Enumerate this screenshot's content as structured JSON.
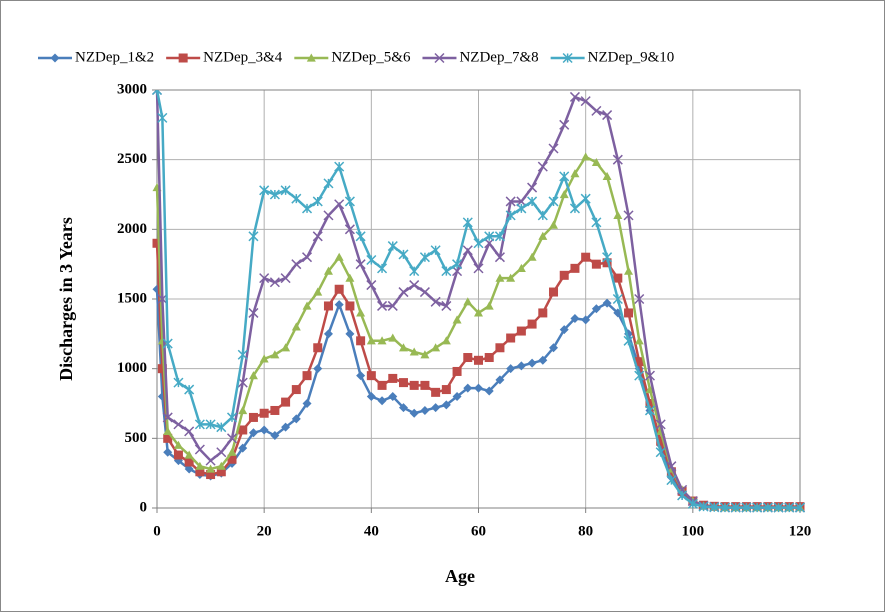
{
  "chart_data": {
    "type": "line",
    "xlabel": "Age",
    "ylabel": "Discharges in 3 Years",
    "x": [
      0,
      1,
      2,
      4,
      6,
      8,
      10,
      12,
      14,
      16,
      18,
      20,
      22,
      24,
      26,
      28,
      30,
      32,
      34,
      36,
      38,
      40,
      42,
      44,
      46,
      48,
      50,
      52,
      54,
      56,
      58,
      60,
      62,
      64,
      66,
      68,
      70,
      72,
      74,
      76,
      78,
      80,
      82,
      84,
      86,
      88,
      90,
      92,
      94,
      96,
      98,
      100,
      102,
      104,
      106,
      108,
      110,
      112,
      114,
      116,
      118,
      120
    ],
    "series": [
      {
        "name": "NZDep_1&2",
        "color": "#4a7ebb",
        "marker": "diamond",
        "values": [
          1570,
          800,
          400,
          340,
          280,
          240,
          230,
          250,
          320,
          430,
          540,
          560,
          520,
          580,
          640,
          750,
          1000,
          1250,
          1460,
          1250,
          950,
          800,
          770,
          800,
          720,
          680,
          700,
          720,
          740,
          800,
          860,
          860,
          840,
          920,
          1000,
          1020,
          1040,
          1060,
          1150,
          1280,
          1360,
          1350,
          1430,
          1470,
          1400,
          1250,
          1000,
          700,
          450,
          220,
          100,
          40,
          15,
          8,
          5,
          5,
          5,
          5,
          5,
          5,
          5,
          5
        ]
      },
      {
        "name": "NZDep_3&4",
        "color": "#be4b48",
        "marker": "square",
        "values": [
          1900,
          1000,
          500,
          380,
          330,
          260,
          240,
          260,
          350,
          560,
          650,
          680,
          700,
          760,
          850,
          950,
          1150,
          1450,
          1570,
          1450,
          1200,
          950,
          880,
          930,
          900,
          880,
          880,
          830,
          850,
          980,
          1080,
          1060,
          1080,
          1150,
          1220,
          1270,
          1320,
          1400,
          1550,
          1670,
          1720,
          1800,
          1750,
          1760,
          1650,
          1400,
          1050,
          750,
          480,
          260,
          120,
          50,
          20,
          12,
          10,
          10,
          10,
          10,
          10,
          10,
          10,
          10
        ]
      },
      {
        "name": "NZDep_5&6",
        "color": "#98b954",
        "marker": "triangle",
        "values": [
          2300,
          1200,
          550,
          450,
          380,
          300,
          280,
          300,
          400,
          700,
          950,
          1070,
          1100,
          1150,
          1300,
          1450,
          1550,
          1700,
          1800,
          1650,
          1400,
          1200,
          1200,
          1220,
          1150,
          1120,
          1100,
          1150,
          1200,
          1350,
          1480,
          1400,
          1450,
          1650,
          1650,
          1720,
          1800,
          1950,
          2030,
          2250,
          2400,
          2520,
          2480,
          2380,
          2100,
          1700,
          1200,
          850,
          550,
          280,
          130,
          50,
          15,
          8,
          3,
          3,
          3,
          3,
          3,
          3,
          3,
          3
        ]
      },
      {
        "name": "NZDep_7&8",
        "color": "#7d60a0",
        "marker": "x",
        "values": [
          3000,
          1500,
          650,
          600,
          550,
          420,
          340,
          400,
          500,
          900,
          1400,
          1650,
          1620,
          1650,
          1750,
          1800,
          1950,
          2100,
          2180,
          2000,
          1750,
          1600,
          1450,
          1450,
          1550,
          1600,
          1550,
          1480,
          1450,
          1700,
          1850,
          1720,
          1900,
          1800,
          2200,
          2200,
          2300,
          2450,
          2580,
          2750,
          2950,
          2920,
          2850,
          2820,
          2500,
          2100,
          1500,
          950,
          600,
          300,
          130,
          50,
          15,
          8,
          3,
          3,
          3,
          3,
          3,
          3,
          3,
          3
        ]
      },
      {
        "name": "NZDep_9&10",
        "color": "#46aac5",
        "marker": "asterisk",
        "values": [
          3000,
          2800,
          1180,
          900,
          850,
          600,
          600,
          580,
          650,
          1100,
          1950,
          2280,
          2250,
          2280,
          2220,
          2150,
          2200,
          2330,
          2450,
          2200,
          1950,
          1780,
          1720,
          1880,
          1820,
          1700,
          1800,
          1850,
          1700,
          1750,
          2050,
          1900,
          1950,
          1950,
          2100,
          2150,
          2200,
          2100,
          2200,
          2380,
          2150,
          2220,
          2050,
          1800,
          1500,
          1200,
          950,
          700,
          400,
          200,
          90,
          30,
          10,
          5,
          3,
          3,
          3,
          3,
          3,
          3,
          3,
          3
        ]
      }
    ],
    "xlim": [
      0,
      120
    ],
    "xticks": [
      0,
      20,
      40,
      60,
      80,
      100,
      120
    ],
    "ylim": [
      0,
      3000
    ],
    "yticks": [
      0,
      500,
      1000,
      1500,
      2000,
      2500,
      3000
    ],
    "grid": true,
    "legend": "top"
  }
}
